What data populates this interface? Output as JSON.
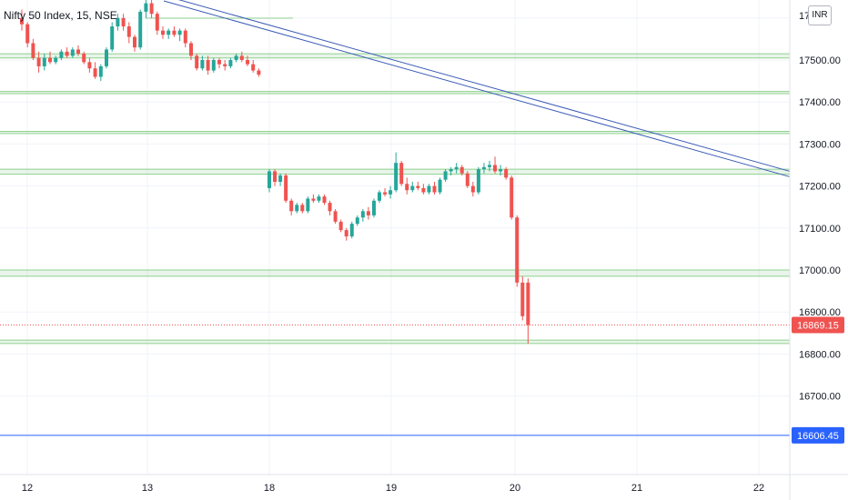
{
  "chart_data": {
    "type": "candlestick",
    "title": "Nifty 50 Index, 15, NSE",
    "currency": "INR",
    "x_tick_labels": [
      "12",
      "13",
      "18",
      "19",
      "20",
      "21",
      "22"
    ],
    "y_ticks": [
      16700,
      16800,
      16900,
      17000,
      17100,
      17200,
      17300,
      17400,
      17500
    ],
    "y_tick_labels": [
      "16700.00",
      "16800.00",
      "16900.00",
      "17000.00",
      "17100.00",
      "17200.00",
      "17300.00",
      "17400.00",
      "17500.00"
    ],
    "top_tick_label": "17",
    "ylim": [
      16560,
      17650
    ],
    "grid": true,
    "last_price": {
      "value": 16869.15,
      "label": "16869.15",
      "color": "#ef5350"
    },
    "horizontal_line": {
      "value": 16606.45,
      "label": "16606.45",
      "color": "#2962ff"
    },
    "support_resistance_zones": [
      [
        17505,
        17515
      ],
      [
        17420,
        17425
      ],
      [
        17325,
        17330
      ],
      [
        17228,
        17240
      ],
      [
        16985,
        17000
      ],
      [
        16825,
        16833
      ]
    ],
    "trendline": {
      "color": "#3b5bb5",
      "from": {
        "day": "12.9",
        "value": 17650
      },
      "to": {
        "day": "22.05",
        "value": 17235
      }
    },
    "candle_colors": {
      "up": "#26a69a",
      "down": "#ef5350"
    },
    "candles": [
      {
        "o": 17600,
        "h": 17620,
        "l": 17570,
        "c": 17585
      },
      {
        "o": 17585,
        "h": 17590,
        "l": 17530,
        "c": 17540
      },
      {
        "o": 17540,
        "h": 17550,
        "l": 17500,
        "c": 17505
      },
      {
        "o": 17505,
        "h": 17520,
        "l": 17470,
        "c": 17485
      },
      {
        "o": 17485,
        "h": 17515,
        "l": 17475,
        "c": 17505
      },
      {
        "o": 17505,
        "h": 17520,
        "l": 17490,
        "c": 17495
      },
      {
        "o": 17495,
        "h": 17510,
        "l": 17490,
        "c": 17505
      },
      {
        "o": 17505,
        "h": 17525,
        "l": 17500,
        "c": 17520
      },
      {
        "o": 17520,
        "h": 17530,
        "l": 17505,
        "c": 17510
      },
      {
        "o": 17510,
        "h": 17530,
        "l": 17505,
        "c": 17525
      },
      {
        "o": 17525,
        "h": 17535,
        "l": 17510,
        "c": 17515
      },
      {
        "o": 17515,
        "h": 17520,
        "l": 17490,
        "c": 17495
      },
      {
        "o": 17495,
        "h": 17505,
        "l": 17470,
        "c": 17480
      },
      {
        "o": 17480,
        "h": 17495,
        "l": 17455,
        "c": 17460
      },
      {
        "o": 17460,
        "h": 17490,
        "l": 17450,
        "c": 17485
      },
      {
        "o": 17485,
        "h": 17530,
        "l": 17480,
        "c": 17525
      },
      {
        "o": 17525,
        "h": 17590,
        "l": 17520,
        "c": 17580
      },
      {
        "o": 17580,
        "h": 17610,
        "l": 17570,
        "c": 17600
      },
      {
        "o": 17600,
        "h": 17610,
        "l": 17570,
        "c": 17580
      },
      {
        "o": 17580,
        "h": 17590,
        "l": 17540,
        "c": 17555
      },
      {
        "o": 17555,
        "h": 17560,
        "l": 17520,
        "c": 17530
      },
      {
        "o": 17530,
        "h": 17620,
        "l": 17525,
        "c": 17615
      },
      {
        "o": 17615,
        "h": 17650,
        "l": 17600,
        "c": 17635
      },
      {
        "o": 17635,
        "h": 17650,
        "l": 17600,
        "c": 17610
      },
      {
        "o": 17610,
        "h": 17615,
        "l": 17560,
        "c": 17570
      },
      {
        "o": 17570,
        "h": 17580,
        "l": 17550,
        "c": 17560
      },
      {
        "o": 17560,
        "h": 17575,
        "l": 17550,
        "c": 17570
      },
      {
        "o": 17570,
        "h": 17580,
        "l": 17555,
        "c": 17560
      },
      {
        "o": 17560,
        "h": 17575,
        "l": 17545,
        "c": 17570
      },
      {
        "o": 17570,
        "h": 17575,
        "l": 17530,
        "c": 17540
      },
      {
        "o": 17540,
        "h": 17545,
        "l": 17500,
        "c": 17510
      },
      {
        "o": 17510,
        "h": 17515,
        "l": 17475,
        "c": 17480
      },
      {
        "o": 17480,
        "h": 17510,
        "l": 17475,
        "c": 17500
      },
      {
        "o": 17500,
        "h": 17510,
        "l": 17465,
        "c": 17475
      },
      {
        "o": 17475,
        "h": 17505,
        "l": 17470,
        "c": 17500
      },
      {
        "o": 17500,
        "h": 17505,
        "l": 17480,
        "c": 17490
      },
      {
        "o": 17490,
        "h": 17500,
        "l": 17475,
        "c": 17485
      },
      {
        "o": 17485,
        "h": 17505,
        "l": 17480,
        "c": 17500
      },
      {
        "o": 17500,
        "h": 17515,
        "l": 17495,
        "c": 17510
      },
      {
        "o": 17510,
        "h": 17520,
        "l": 17495,
        "c": 17500
      },
      {
        "o": 17500,
        "h": 17510,
        "l": 17485,
        "c": 17490
      },
      {
        "o": 17490,
        "h": 17500,
        "l": 17470,
        "c": 17475
      },
      {
        "o": 17475,
        "h": 17480,
        "l": 17460,
        "c": 17465
      },
      {
        "o": 17195,
        "h": 17240,
        "l": 17185,
        "c": 17235
      },
      {
        "o": 17235,
        "h": 17240,
        "l": 17200,
        "c": 17210
      },
      {
        "o": 17210,
        "h": 17230,
        "l": 17200,
        "c": 17225
      },
      {
        "o": 17225,
        "h": 17230,
        "l": 17160,
        "c": 17165
      },
      {
        "o": 17165,
        "h": 17170,
        "l": 17130,
        "c": 17140
      },
      {
        "o": 17140,
        "h": 17160,
        "l": 17135,
        "c": 17155
      },
      {
        "o": 17155,
        "h": 17160,
        "l": 17135,
        "c": 17140
      },
      {
        "o": 17140,
        "h": 17175,
        "l": 17135,
        "c": 17170
      },
      {
        "o": 17170,
        "h": 17180,
        "l": 17160,
        "c": 17165
      },
      {
        "o": 17165,
        "h": 17180,
        "l": 17160,
        "c": 17175
      },
      {
        "o": 17175,
        "h": 17180,
        "l": 17155,
        "c": 17160
      },
      {
        "o": 17160,
        "h": 17165,
        "l": 17130,
        "c": 17140
      },
      {
        "o": 17140,
        "h": 17145,
        "l": 17110,
        "c": 17115
      },
      {
        "o": 17115,
        "h": 17120,
        "l": 17090,
        "c": 17095
      },
      {
        "o": 17095,
        "h": 17100,
        "l": 17070,
        "c": 17080
      },
      {
        "o": 17080,
        "h": 17115,
        "l": 17075,
        "c": 17110
      },
      {
        "o": 17110,
        "h": 17130,
        "l": 17105,
        "c": 17125
      },
      {
        "o": 17125,
        "h": 17145,
        "l": 17115,
        "c": 17140
      },
      {
        "o": 17140,
        "h": 17150,
        "l": 17120,
        "c": 17130
      },
      {
        "o": 17130,
        "h": 17170,
        "l": 17125,
        "c": 17165
      },
      {
        "o": 17165,
        "h": 17190,
        "l": 17160,
        "c": 17185
      },
      {
        "o": 17185,
        "h": 17195,
        "l": 17175,
        "c": 17180
      },
      {
        "o": 17180,
        "h": 17200,
        "l": 17170,
        "c": 17190
      },
      {
        "o": 17190,
        "h": 17280,
        "l": 17185,
        "c": 17255
      },
      {
        "o": 17255,
        "h": 17260,
        "l": 17200,
        "c": 17205
      },
      {
        "o": 17205,
        "h": 17220,
        "l": 17180,
        "c": 17190
      },
      {
        "o": 17190,
        "h": 17210,
        "l": 17185,
        "c": 17200
      },
      {
        "o": 17200,
        "h": 17210,
        "l": 17190,
        "c": 17195
      },
      {
        "o": 17195,
        "h": 17205,
        "l": 17180,
        "c": 17185
      },
      {
        "o": 17185,
        "h": 17205,
        "l": 17180,
        "c": 17200
      },
      {
        "o": 17200,
        "h": 17210,
        "l": 17180,
        "c": 17185
      },
      {
        "o": 17185,
        "h": 17220,
        "l": 17180,
        "c": 17215
      },
      {
        "o": 17215,
        "h": 17240,
        "l": 17210,
        "c": 17235
      },
      {
        "o": 17235,
        "h": 17245,
        "l": 17225,
        "c": 17240
      },
      {
        "o": 17240,
        "h": 17255,
        "l": 17230,
        "c": 17245
      },
      {
        "o": 17245,
        "h": 17250,
        "l": 17225,
        "c": 17230
      },
      {
        "o": 17230,
        "h": 17235,
        "l": 17195,
        "c": 17200
      },
      {
        "o": 17200,
        "h": 17210,
        "l": 17175,
        "c": 17185
      },
      {
        "o": 17185,
        "h": 17245,
        "l": 17180,
        "c": 17240
      },
      {
        "o": 17240,
        "h": 17255,
        "l": 17230,
        "c": 17245
      },
      {
        "o": 17245,
        "h": 17260,
        "l": 17235,
        "c": 17250
      },
      {
        "o": 17250,
        "h": 17270,
        "l": 17230,
        "c": 17235
      },
      {
        "o": 17235,
        "h": 17250,
        "l": 17225,
        "c": 17240
      },
      {
        "o": 17240,
        "h": 17245,
        "l": 17215,
        "c": 17220
      },
      {
        "o": 17220,
        "h": 17225,
        "l": 17120,
        "c": 17125
      },
      {
        "o": 17125,
        "h": 17130,
        "l": 16960,
        "c": 16970
      },
      {
        "o": 16970,
        "h": 16985,
        "l": 16880,
        "c": 16890
      },
      {
        "o": 16970,
        "h": 16980,
        "l": 16825,
        "c": 16869.15
      }
    ]
  }
}
